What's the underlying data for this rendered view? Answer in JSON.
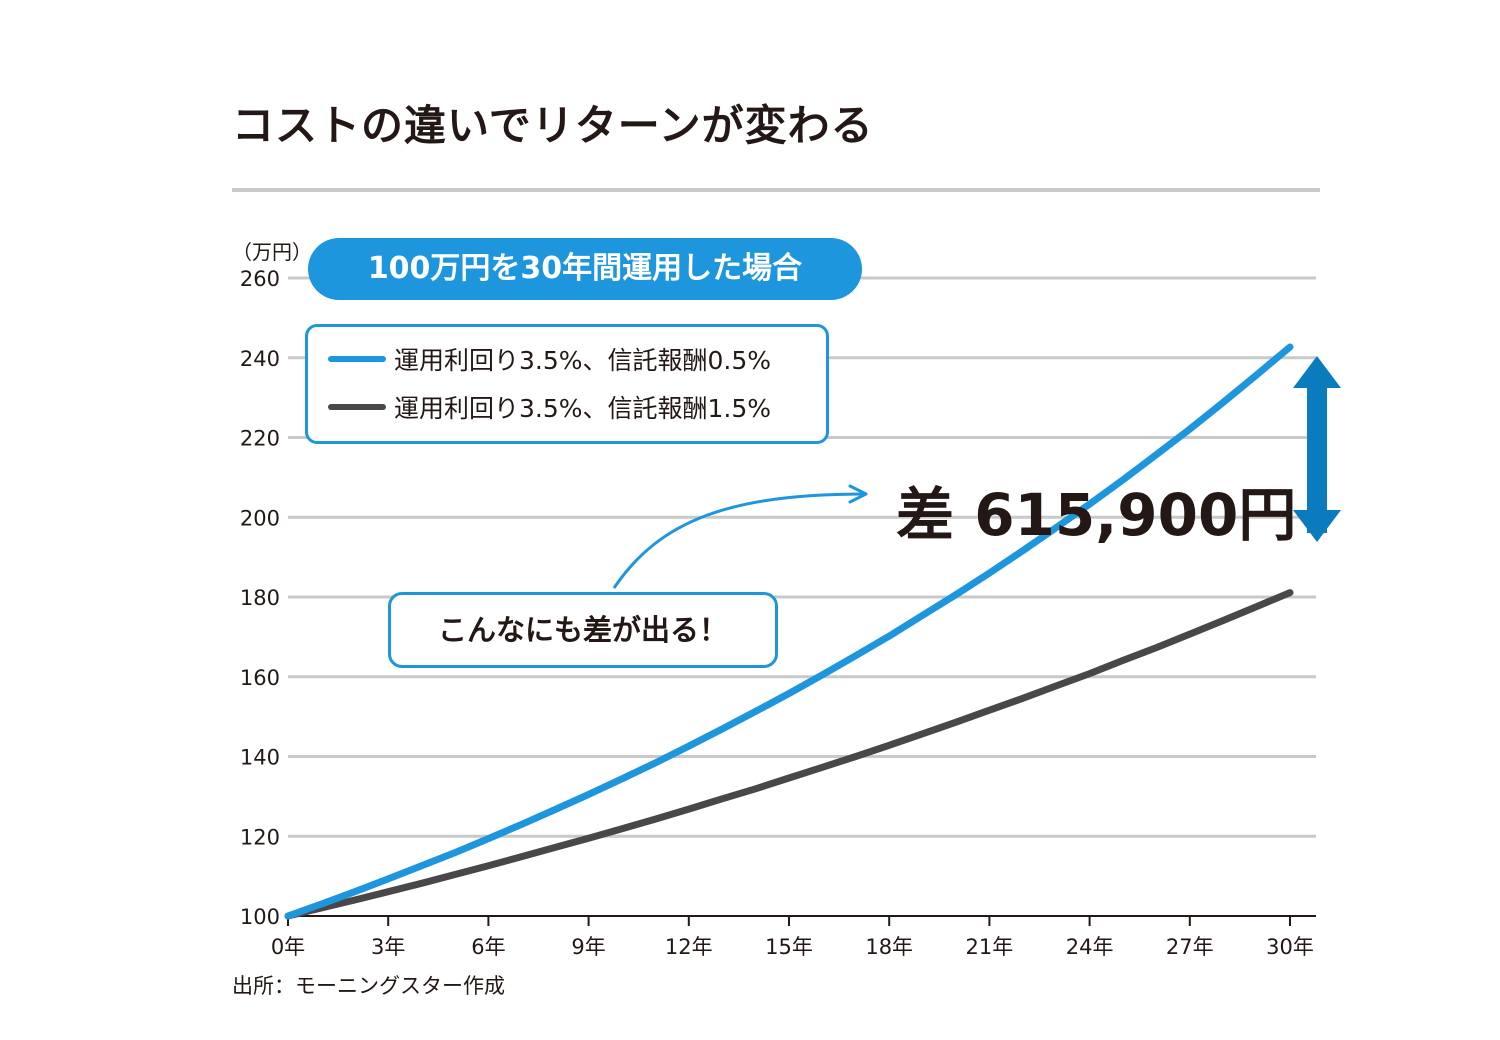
{
  "title": "コストの違いでリターンが変わる",
  "unit": "（万円）",
  "source": "出所：モーニングスター作成",
  "banner": "100万円を30年間運用した場合",
  "callout": "こんなにも差が出る！",
  "difference": "差 615,900円",
  "colors": {
    "accent": "#1d96de",
    "dark_series": "#4a474b",
    "arrow": "#0a7bbd",
    "grid": "#c9c9c9"
  },
  "chart_data": {
    "type": "line",
    "title": "コストの違いでリターンが変わる",
    "xlabel": "",
    "ylabel": "（万円）",
    "x": [
      0,
      1,
      2,
      3,
      4,
      5,
      6,
      7,
      8,
      9,
      10,
      11,
      12,
      13,
      14,
      15,
      16,
      17,
      18,
      19,
      20,
      21,
      22,
      23,
      24,
      25,
      26,
      27,
      28,
      29,
      30
    ],
    "x_tick_labels": [
      "0年",
      "3年",
      "6年",
      "9年",
      "12年",
      "15年",
      "18年",
      "21年",
      "24年",
      "27年",
      "30年"
    ],
    "y_ticks": [
      100,
      120,
      140,
      160,
      180,
      200,
      220,
      240,
      260
    ],
    "ylim": [
      100,
      260
    ],
    "grid": true,
    "legend_position": "top-left",
    "series": [
      {
        "name": "運用利回り3.5%、信託報酬0.5%",
        "color": "#1d96de",
        "values": [
          100,
          103.0,
          106.1,
          109.3,
          112.6,
          115.9,
          119.4,
          123.0,
          126.7,
          130.5,
          134.4,
          138.4,
          142.6,
          146.9,
          151.3,
          155.8,
          160.5,
          165.3,
          170.2,
          175.4,
          180.6,
          186.0,
          191.6,
          197.4,
          203.3,
          209.4,
          215.7,
          222.1,
          228.8,
          235.7,
          242.7
        ]
      },
      {
        "name": "運用利回り3.5%、信託報酬1.5%",
        "color": "#4a474b",
        "values": [
          100,
          102.0,
          104.0,
          106.1,
          108.2,
          110.4,
          112.6,
          114.9,
          117.2,
          119.5,
          121.9,
          124.3,
          126.8,
          129.4,
          131.9,
          134.6,
          137.3,
          140.0,
          142.8,
          145.7,
          148.6,
          151.6,
          154.6,
          157.7,
          160.8,
          164.1,
          167.3,
          170.7,
          174.1,
          177.6,
          181.1
        ]
      }
    ],
    "annotations": [
      "差 615,900円",
      "こんなにも差が出る！",
      "100万円を30年間運用した場合"
    ]
  }
}
